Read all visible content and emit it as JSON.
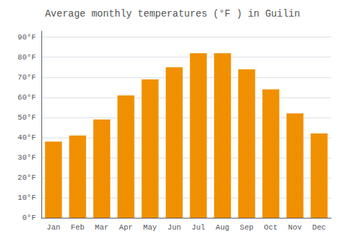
{
  "chart_data": {
    "type": "bar",
    "title": "Average monthly temperatures (°F ) in Guilin",
    "categories": [
      "Jan",
      "Feb",
      "Mar",
      "Apr",
      "May",
      "Jun",
      "Jul",
      "Aug",
      "Sep",
      "Oct",
      "Nov",
      "Dec"
    ],
    "values": [
      38,
      41,
      49,
      61,
      69,
      75,
      82,
      82,
      74,
      64,
      52,
      42
    ],
    "color": "#F09000",
    "ylim": [
      0,
      93
    ],
    "yticks": [
      {
        "value": 0,
        "label": "0°F"
      },
      {
        "value": 10,
        "label": "10°F"
      },
      {
        "value": 20,
        "label": "20°F"
      },
      {
        "value": 30,
        "label": "30°F"
      },
      {
        "value": 40,
        "label": "40°F"
      },
      {
        "value": 50,
        "label": "50°F"
      },
      {
        "value": 60,
        "label": "60°F"
      },
      {
        "value": 70,
        "label": "70°F"
      },
      {
        "value": 80,
        "label": "80°F"
      },
      {
        "value": 90,
        "label": "90°F"
      }
    ],
    "grid": true
  }
}
